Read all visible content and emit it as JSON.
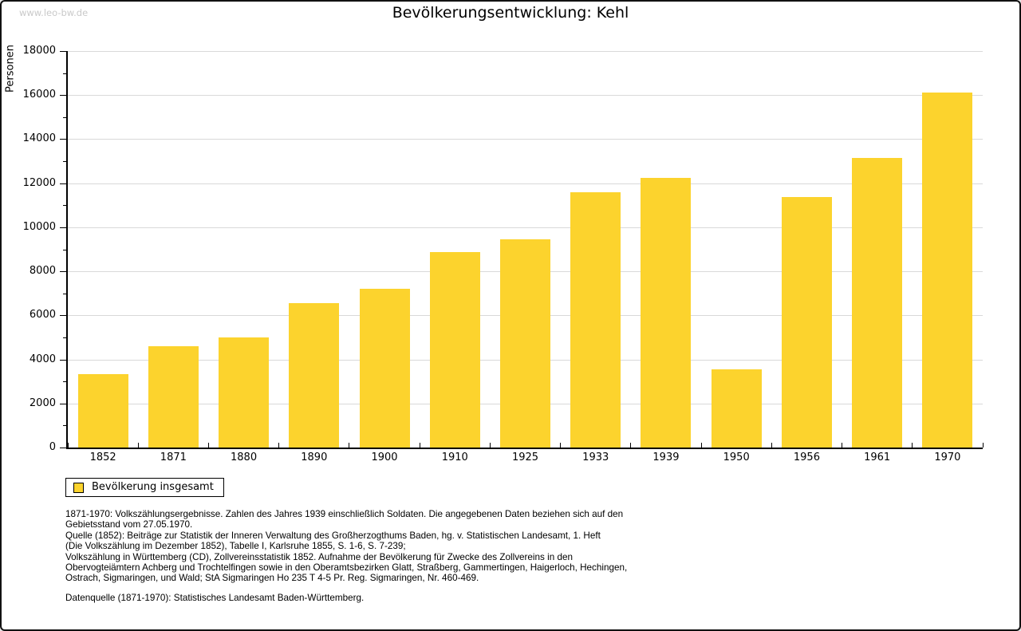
{
  "watermark": "www.leo-bw.de",
  "title": "Bevölkerungsentwicklung: Kehl",
  "chart_data": {
    "type": "bar",
    "title": "Bevölkerungsentwicklung: Kehl",
    "xlabel": "",
    "ylabel": "Personen",
    "categories": [
      "1852",
      "1871",
      "1880",
      "1890",
      "1900",
      "1910",
      "1925",
      "1933",
      "1939",
      "1950",
      "1956",
      "1961",
      "1970"
    ],
    "series": [
      {
        "name": "Bevölkerung insgesamt",
        "values": [
          3330,
          4600,
          5000,
          6570,
          7190,
          8860,
          9460,
          11590,
          12250,
          3550,
          11380,
          13150,
          16100
        ]
      }
    ],
    "ylim": [
      0,
      18000
    ],
    "ytick_step": 2000,
    "yminor_step": 1000,
    "grid": "horizontal-major",
    "legend_position": "bottom-left",
    "bar_color": "#FCD32D",
    "grid_color": "#d9d9d9",
    "axis_color": "#000000"
  },
  "legend": {
    "label": "Bevölkerung insgesamt",
    "swatch_color": "#FCD32D"
  },
  "footer": {
    "lines": [
      "1871-1970: Volkszählungsergebnisse. Zahlen des Jahres 1939 einschließlich Soldaten. Die angegebenen Daten beziehen sich auf den",
      "Gebietsstand vom 27.05.1970.",
      "Quelle (1852): Beiträge zur Statistik der Inneren Verwaltung des Großherzogthums Baden, hg. v. Statistischen Landesamt, 1. Heft",
      "(Die Volkszählung im Dezember 1852), Tabelle I, Karlsruhe 1855, S. 1-6, S. 7-239;",
      "Volkszählung in Württemberg (CD), Zollvereinsstatistik 1852. Aufnahme der Bevölkerung für Zwecke des Zollvereins in den",
      "Obervogteiämtern Achberg und Trochtelfingen sowie in den Oberamtsbezirken Glatt, Straßberg, Gammertingen, Haigerloch, Hechingen,",
      "Ostrach, Sigmaringen, und Wald; StA Sigmaringen Ho 235 T 4-5 Pr. Reg. Sigmaringen, Nr. 460-469."
    ],
    "datasource": "Datenquelle (1871-1970): Statistisches Landesamt Baden-Württemberg."
  }
}
